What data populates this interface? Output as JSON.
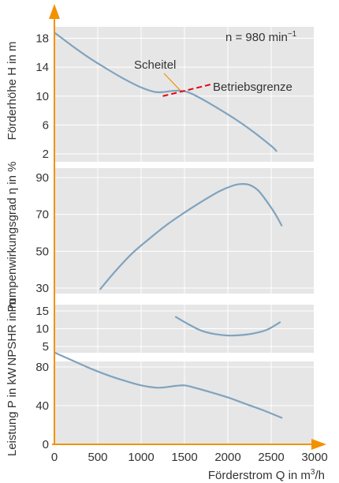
{
  "colors": {
    "axis": "#f39200",
    "panel": "#e6e6e6",
    "grid": "#ffffff",
    "curve": "#7fa3bf",
    "limit": "#e30613",
    "text": "#333333"
  },
  "chart_data": {
    "type": "line",
    "x_axis": {
      "label_main": "Förderstrom Q in m",
      "label_sup": "3",
      "label_tail": "/h",
      "range": [
        0,
        3000
      ],
      "ticks": [
        0,
        500,
        1000,
        1500,
        2000,
        2500,
        3000
      ]
    },
    "panels": [
      {
        "id": "head",
        "ylabel": "Förderhöhe H in m",
        "ylim": [
          2,
          20
        ],
        "yticks": [
          2,
          6,
          10,
          14,
          18
        ],
        "series": [
          {
            "x": [
              0,
              200,
              400,
              600,
              800,
              1000,
              1150,
              1250,
              1350,
              1450,
              1550,
              1700,
              1900,
              2100,
              2300,
              2500,
              2560
            ],
            "y": [
              18.8,
              17.0,
              15.3,
              13.8,
              12.4,
              11.2,
              10.6,
              10.55,
              10.7,
              10.75,
              10.5,
              9.6,
              8.2,
              6.7,
              5.0,
              3.1,
              2.4
            ]
          }
        ],
        "limit_line": {
          "label": "Betriebsgrenze",
          "x": [
            1250,
            1800
          ],
          "y": [
            10.0,
            11.6
          ]
        },
        "annotations": [
          {
            "text": "Scheitel",
            "pointer_x": 1450,
            "pointer_y": 10.8
          },
          {
            "text_main": "n = 980 min",
            "text_sup": "−1"
          }
        ]
      },
      {
        "id": "efficiency",
        "ylabel": "Pumpenwirkungsgrad η in %",
        "ylim": [
          30,
          92
        ],
        "yticks": [
          30,
          50,
          70,
          90
        ],
        "series": [
          {
            "x": [
              530,
              700,
              900,
              1100,
              1300,
              1500,
              1700,
              1900,
              2050,
              2150,
              2250,
              2350,
              2450,
              2550,
              2620
            ],
            "y": [
              29.5,
              39.0,
              49.0,
              57.0,
              64.5,
              71.0,
              77.0,
              82.5,
              85.5,
              86.5,
              86.0,
              83.0,
              77.0,
              70.0,
              64.0
            ]
          }
        ]
      },
      {
        "id": "npshr",
        "ylabel": "NPSHR in m",
        "ylim": [
          5,
          15
        ],
        "yticks": [
          5,
          10,
          15
        ],
        "series": [
          {
            "x": [
              1400,
              1550,
              1700,
              1850,
              2000,
              2150,
              2300,
              2450,
              2600
            ],
            "y": [
              13.3,
              11.2,
              9.4,
              8.5,
              8.1,
              8.2,
              8.7,
              9.7,
              11.8
            ]
          }
        ]
      },
      {
        "id": "power",
        "ylabel": "Leistung P in kW",
        "ylim": [
          0,
          100
        ],
        "yticks": [
          0,
          40,
          80
        ],
        "series": [
          {
            "x": [
              0,
              200,
              400,
              600,
              800,
              1000,
              1200,
              1400,
              1500,
              1600,
              1800,
              2000,
              2200,
              2400,
              2620
            ],
            "y": [
              95.0,
              87.0,
              79.0,
              72.0,
              66.0,
              61.0,
              58.5,
              60.5,
              61.0,
              59.0,
              54.0,
              48.5,
              42.0,
              35.5,
              27.5
            ]
          }
        ]
      }
    ]
  }
}
